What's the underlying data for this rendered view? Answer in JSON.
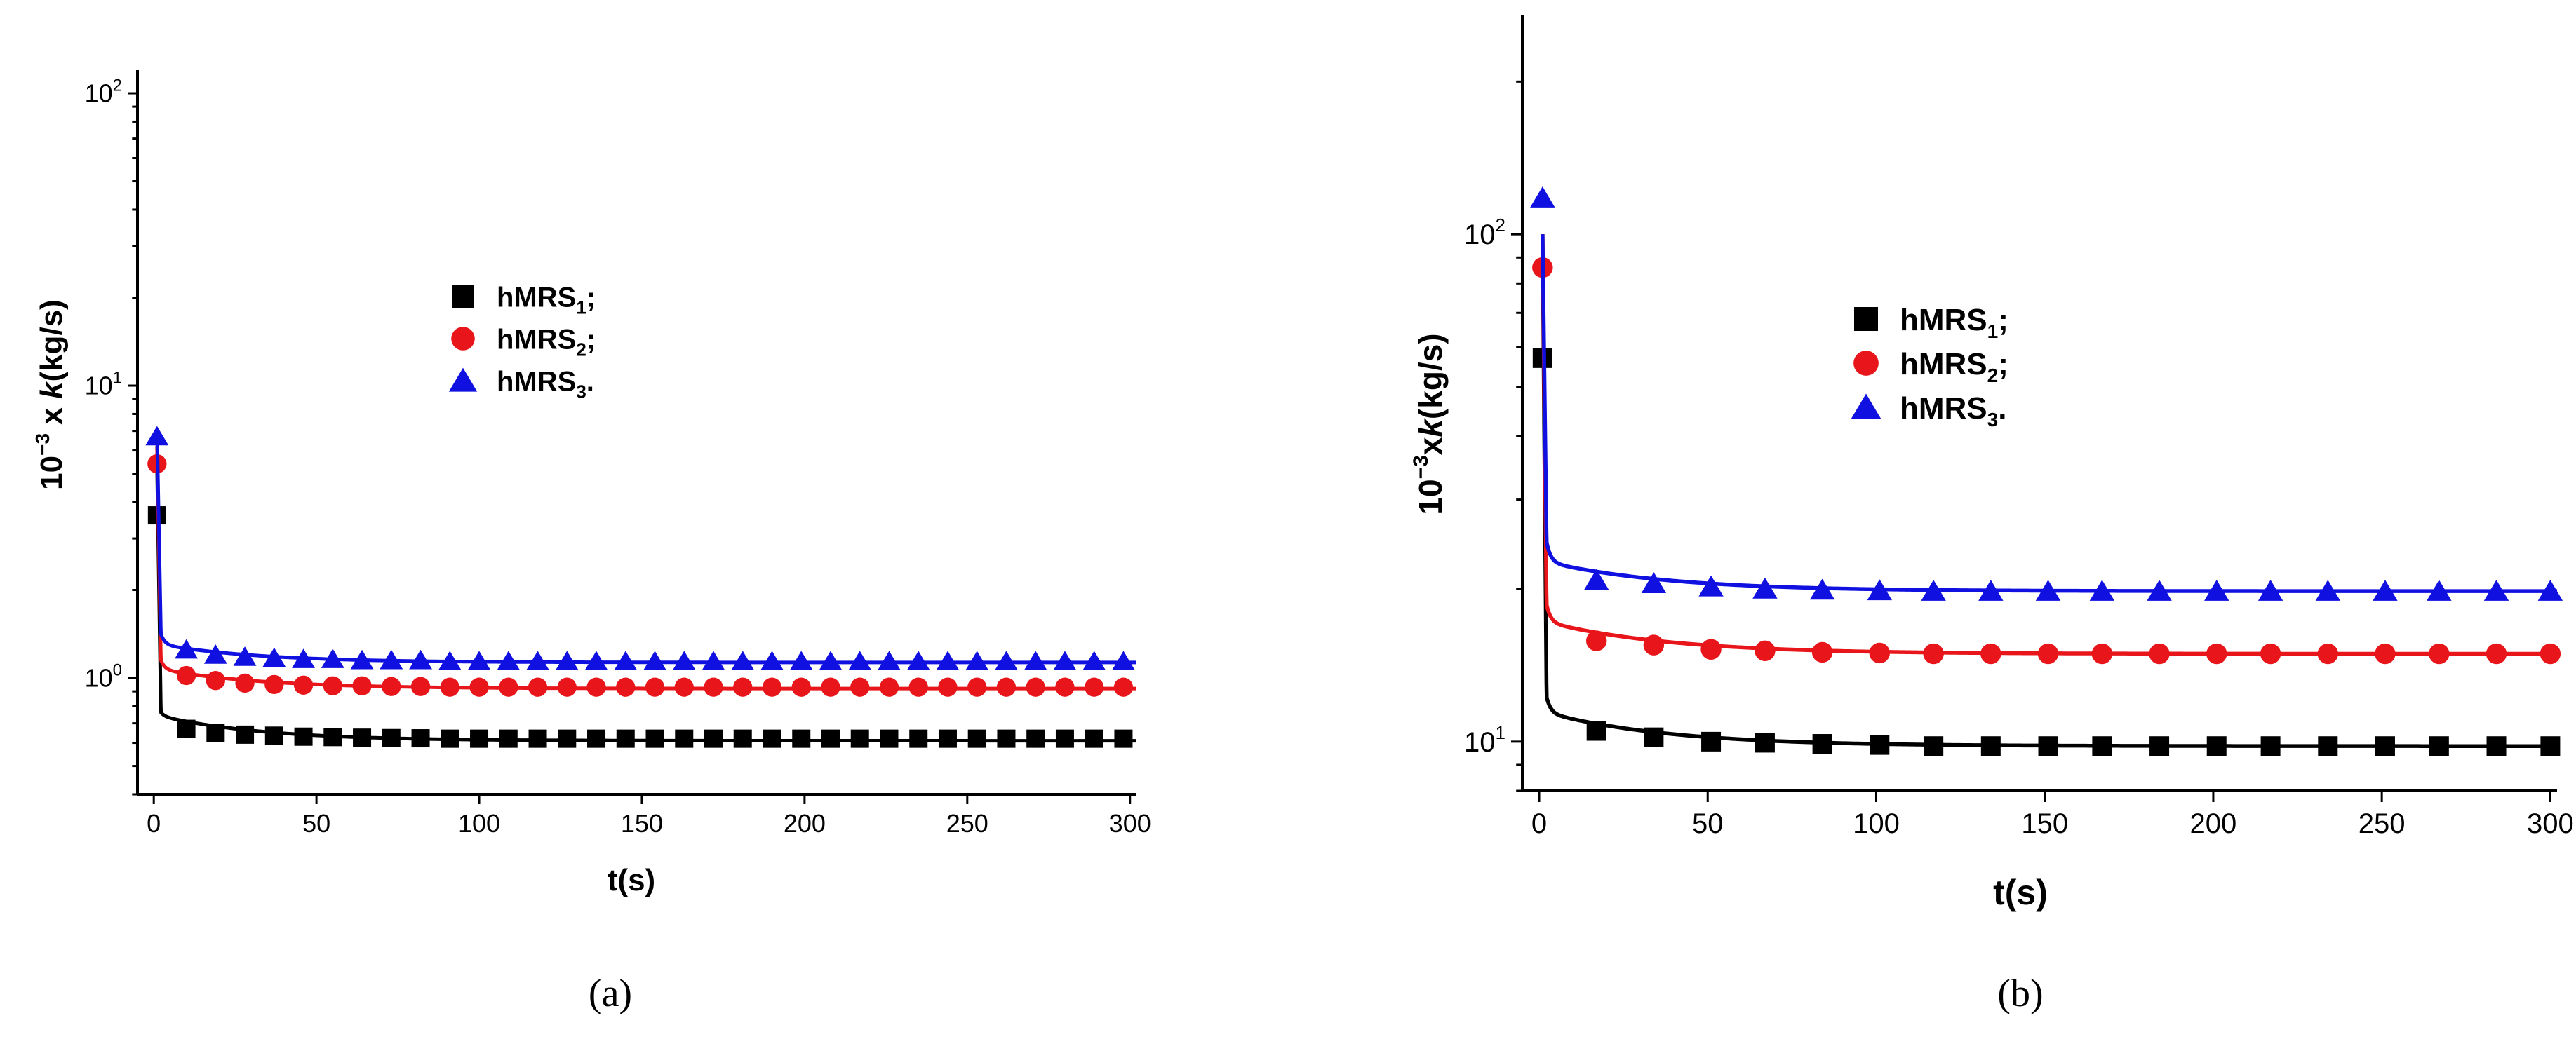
{
  "colors": {
    "hMRS1": "#000000",
    "hMRS2": "#e8161b",
    "hMRS3": "#1010e0"
  },
  "chart_data": [
    {
      "type": "scatter",
      "panel": "a",
      "caption": "(a)",
      "xlabel": "t(s)",
      "ylabel_prefix": "10",
      "ylabel_exp": "−3",
      "ylabel_mid": " x ",
      "ylabel_var": "k",
      "ylabel_unit": "(kg/s)",
      "yscale": "log",
      "xlim": [
        -5,
        302
      ],
      "ylim": [
        0.4,
        120
      ],
      "xticks": [
        0,
        50,
        100,
        150,
        200,
        250,
        300
      ],
      "yticks": [
        {
          "value": 1,
          "base": "10",
          "exp": "0"
        },
        {
          "value": 10,
          "base": "10",
          "exp": "1"
        },
        {
          "value": 100,
          "base": "10",
          "exp": "2"
        }
      ],
      "legend_position": "center",
      "series": [
        {
          "name": "hMRS",
          "sub": "1",
          "suffix": ";",
          "marker": "square",
          "color_key": "hMRS1",
          "x": [
            1,
            10,
            19,
            28,
            37,
            46,
            55,
            64,
            73,
            82,
            91,
            100,
            109,
            118,
            127,
            136,
            145,
            154,
            163,
            172,
            181,
            190,
            199,
            208,
            217,
            226,
            235,
            244,
            253,
            262,
            271,
            280,
            289,
            298
          ],
          "y": [
            3.6,
            0.67,
            0.65,
            0.64,
            0.635,
            0.63,
            0.628,
            0.625,
            0.623,
            0.622,
            0.62,
            0.62,
            0.62,
            0.62,
            0.62,
            0.62,
            0.62,
            0.62,
            0.62,
            0.62,
            0.62,
            0.62,
            0.62,
            0.62,
            0.62,
            0.62,
            0.62,
            0.62,
            0.62,
            0.62,
            0.62,
            0.62,
            0.62,
            0.62
          ],
          "fit": {
            "y0": 5.4,
            "y_inf": 0.61,
            "a": 0.13,
            "tau": 30
          }
        },
        {
          "name": "hMRS",
          "sub": "2",
          "suffix": ";",
          "marker": "circle",
          "color_key": "hMRS2",
          "x": [
            1,
            10,
            19,
            28,
            37,
            46,
            55,
            64,
            73,
            82,
            91,
            100,
            109,
            118,
            127,
            136,
            145,
            154,
            163,
            172,
            181,
            190,
            199,
            208,
            217,
            226,
            235,
            244,
            253,
            262,
            271,
            280,
            289,
            298
          ],
          "y": [
            5.4,
            1.02,
            0.98,
            0.96,
            0.95,
            0.945,
            0.94,
            0.94,
            0.935,
            0.935,
            0.93,
            0.93,
            0.93,
            0.93,
            0.93,
            0.93,
            0.93,
            0.93,
            0.93,
            0.93,
            0.93,
            0.93,
            0.93,
            0.93,
            0.93,
            0.93,
            0.93,
            0.93,
            0.93,
            0.93,
            0.93,
            0.93,
            0.93,
            0.93
          ],
          "fit": {
            "y0": 6.2,
            "y_inf": 0.92,
            "a": 0.15,
            "tau": 30
          }
        },
        {
          "name": "hMRS",
          "sub": "3",
          "suffix": ".",
          "marker": "triangle",
          "color_key": "hMRS3",
          "x": [
            1,
            10,
            19,
            28,
            37,
            46,
            55,
            64,
            73,
            82,
            91,
            100,
            109,
            118,
            127,
            136,
            145,
            154,
            163,
            172,
            181,
            190,
            199,
            208,
            217,
            226,
            235,
            244,
            253,
            262,
            271,
            280,
            289,
            298
          ],
          "y": [
            6.7,
            1.25,
            1.2,
            1.18,
            1.17,
            1.16,
            1.16,
            1.15,
            1.15,
            1.15,
            1.14,
            1.14,
            1.14,
            1.14,
            1.14,
            1.14,
            1.14,
            1.14,
            1.14,
            1.14,
            1.14,
            1.14,
            1.14,
            1.14,
            1.14,
            1.14,
            1.14,
            1.14,
            1.14,
            1.14,
            1.14,
            1.14,
            1.14,
            1.14
          ],
          "fit": {
            "y0": 7.0,
            "y_inf": 1.13,
            "a": 0.17,
            "tau": 30
          }
        }
      ]
    },
    {
      "type": "scatter",
      "panel": "b",
      "caption": "(b)",
      "xlabel": "t(s)",
      "ylabel_prefix": "10",
      "ylabel_exp": "−3",
      "ylabel_mid": "x",
      "ylabel_var": "k",
      "ylabel_unit": "(kg/s)",
      "yscale": "log",
      "xlim": [
        -5,
        302
      ],
      "ylim": [
        8,
        270
      ],
      "xticks": [
        0,
        50,
        100,
        150,
        200,
        250,
        300
      ],
      "yticks": [
        {
          "value": 10,
          "base": "10",
          "exp": "1"
        },
        {
          "value": 100,
          "base": "10",
          "exp": "2"
        }
      ],
      "legend_position": "center",
      "series": [
        {
          "name": "hMRS",
          "sub": "1",
          "suffix": ";",
          "marker": "square",
          "color_key": "hMRS1",
          "x": [
            1,
            17,
            34,
            51,
            67,
            84,
            101,
            117,
            134,
            151,
            167,
            184,
            201,
            217,
            234,
            251,
            267,
            284,
            300
          ],
          "y": [
            57,
            10.5,
            10.2,
            10.0,
            9.95,
            9.9,
            9.85,
            9.8,
            9.8,
            9.8,
            9.8,
            9.8,
            9.8,
            9.8,
            9.8,
            9.8,
            9.8,
            9.8,
            9.8
          ],
          "fit": {
            "y0": 100,
            "y_inf": 9.8,
            "a": 1.6,
            "tau": 35
          }
        },
        {
          "name": "hMRS",
          "sub": "2",
          "suffix": ";",
          "marker": "circle",
          "color_key": "hMRS2",
          "x": [
            1,
            17,
            34,
            51,
            67,
            84,
            101,
            117,
            134,
            151,
            167,
            184,
            201,
            217,
            234,
            251,
            267,
            284,
            300
          ],
          "y": [
            86,
            15.8,
            15.5,
            15.2,
            15.1,
            15.0,
            14.95,
            14.9,
            14.9,
            14.9,
            14.9,
            14.9,
            14.9,
            14.9,
            14.9,
            14.9,
            14.9,
            14.9,
            14.9
          ],
          "fit": {
            "y0": 100,
            "y_inf": 14.9,
            "a": 2.3,
            "tau": 35
          }
        },
        {
          "name": "hMRS",
          "sub": "3",
          "suffix": ".",
          "marker": "triangle",
          "color_key": "hMRS3",
          "x": [
            1,
            17,
            34,
            51,
            67,
            84,
            101,
            117,
            134,
            151,
            167,
            184,
            201,
            217,
            234,
            251,
            267,
            284,
            300
          ],
          "y": [
            118,
            20.8,
            20.5,
            20.2,
            20.0,
            19.9,
            19.85,
            19.8,
            19.8,
            19.8,
            19.8,
            19.8,
            19.8,
            19.8,
            19.8,
            19.8,
            19.8,
            19.8,
            19.8
          ],
          "fit": {
            "y0": 100,
            "y_inf": 19.8,
            "a": 2.8,
            "tau": 35
          }
        }
      ]
    }
  ]
}
